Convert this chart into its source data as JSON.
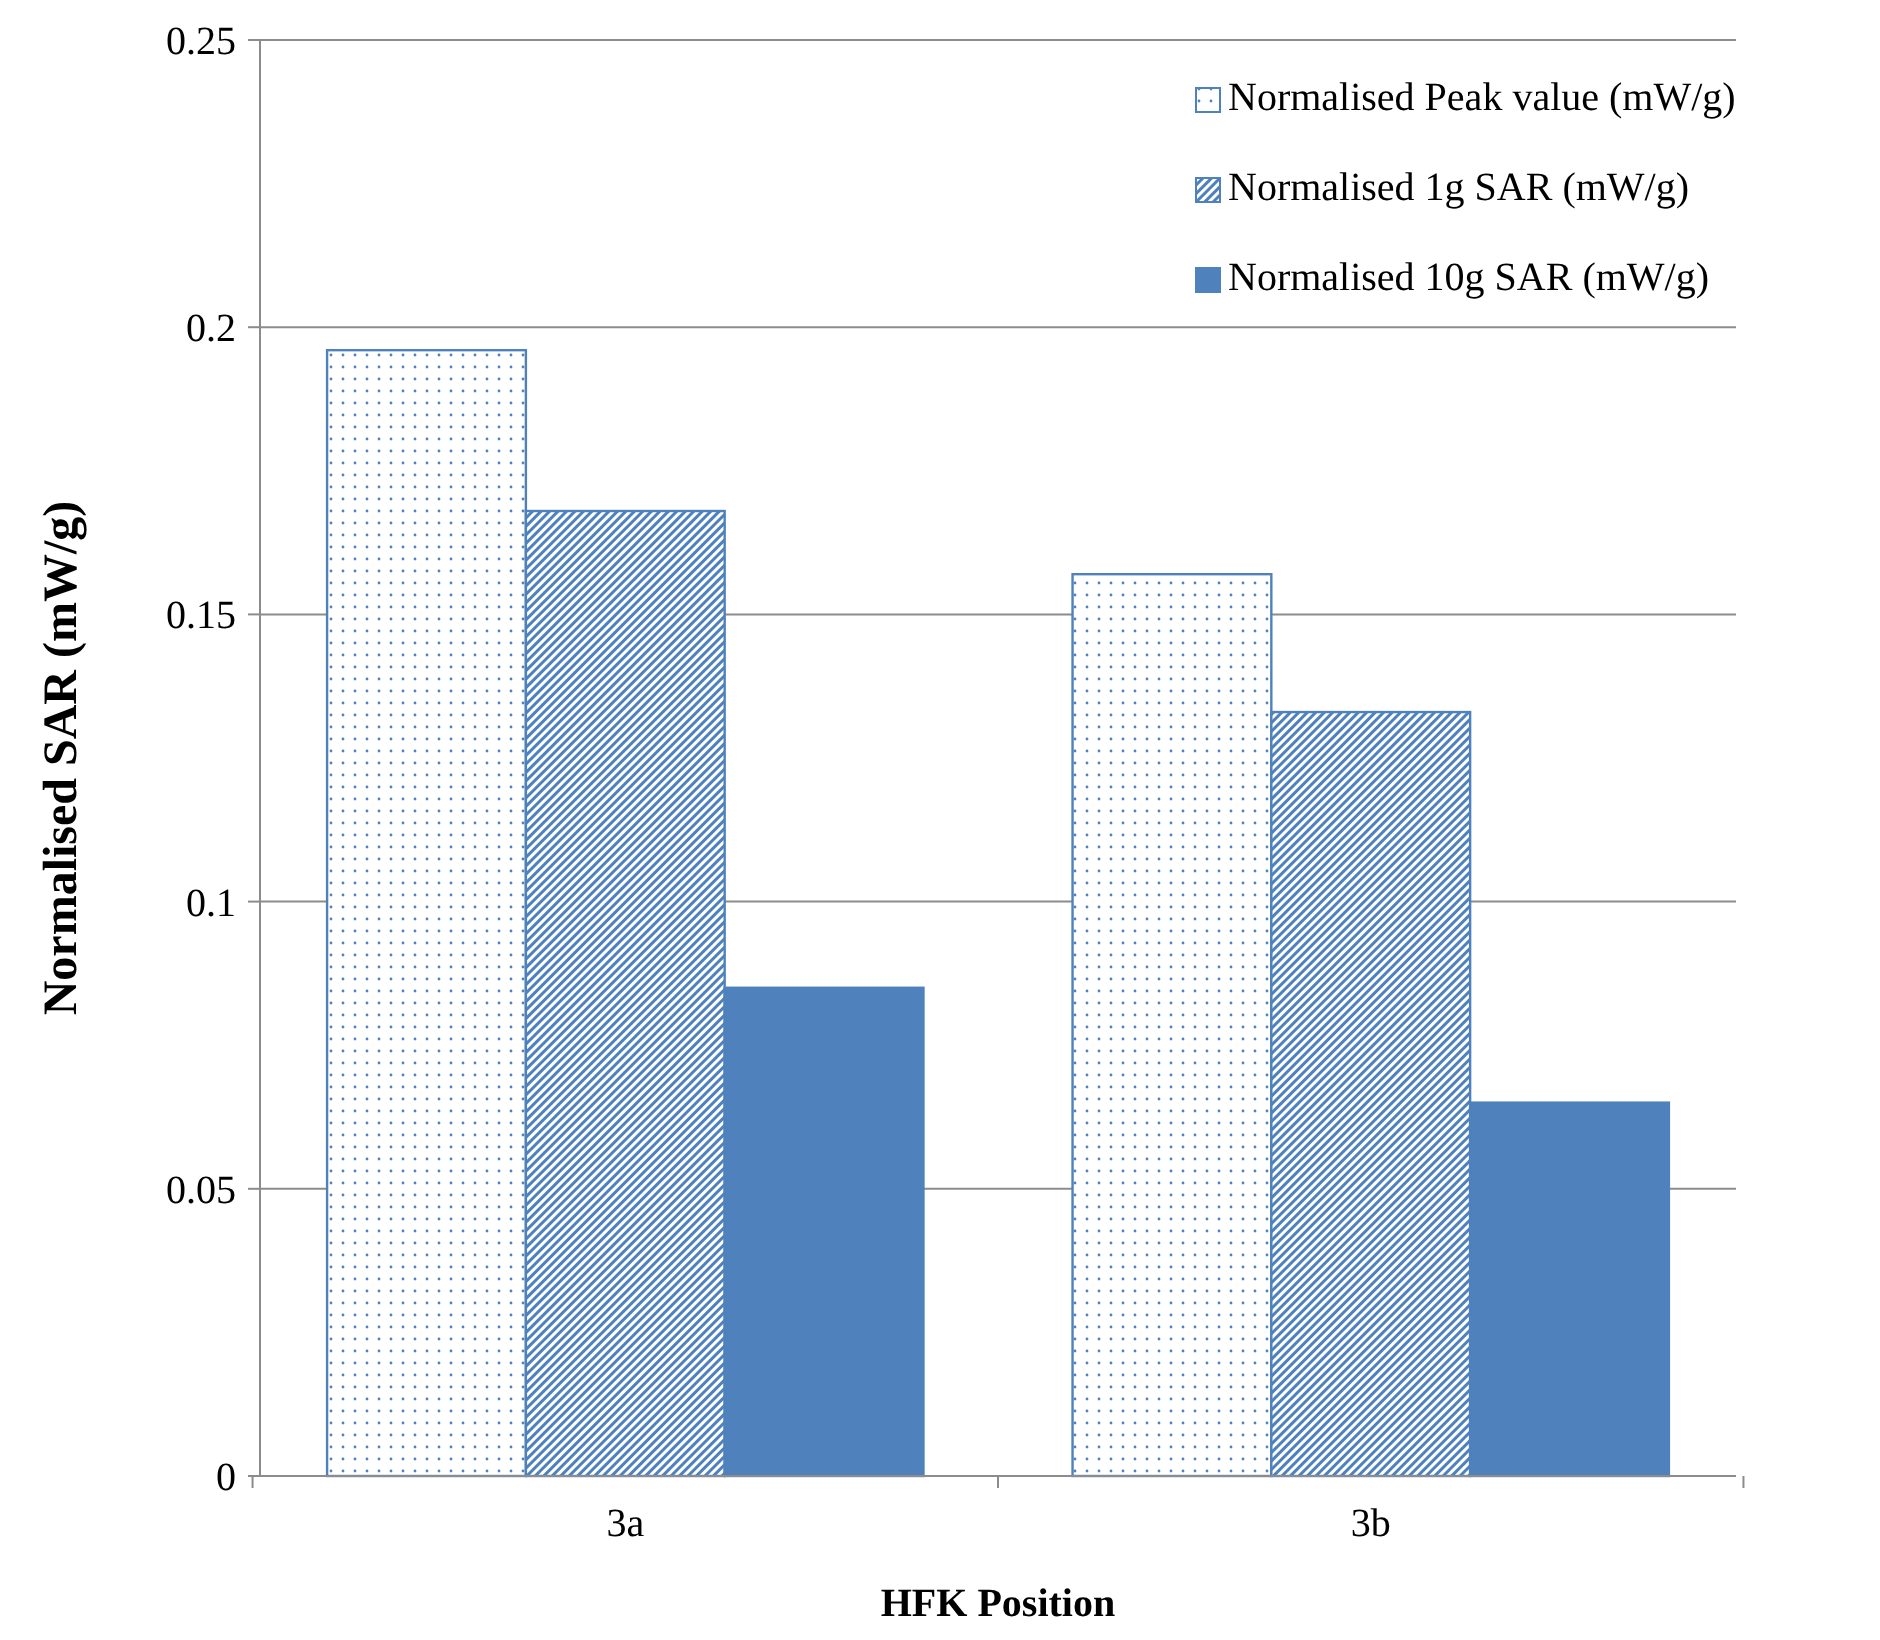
{
  "chart_data": {
    "type": "bar",
    "xlabel": "HFK Position",
    "ylabel": "Normalised SAR (mW/g)",
    "categories": [
      "3a",
      "3b"
    ],
    "series": [
      {
        "name": "Normalised Peak value (mW/g)",
        "color": "#4f81bd",
        "values": [
          0.196,
          0.157
        ]
      },
      {
        "name": "Normalised 1g SAR (mW/g)",
        "color": "#4f81bd",
        "values": [
          0.168,
          0.133
        ]
      },
      {
        "name": "Normalised 10g SAR (mW/g)",
        "color": "#4f81bd",
        "values": [
          0.085,
          0.065
        ]
      }
    ],
    "ylim": [
      0,
      0.25
    ],
    "yticks": [
      0,
      0.05,
      0.1,
      0.15,
      0.2,
      0.25
    ],
    "grid": "y",
    "legend": "top right"
  }
}
